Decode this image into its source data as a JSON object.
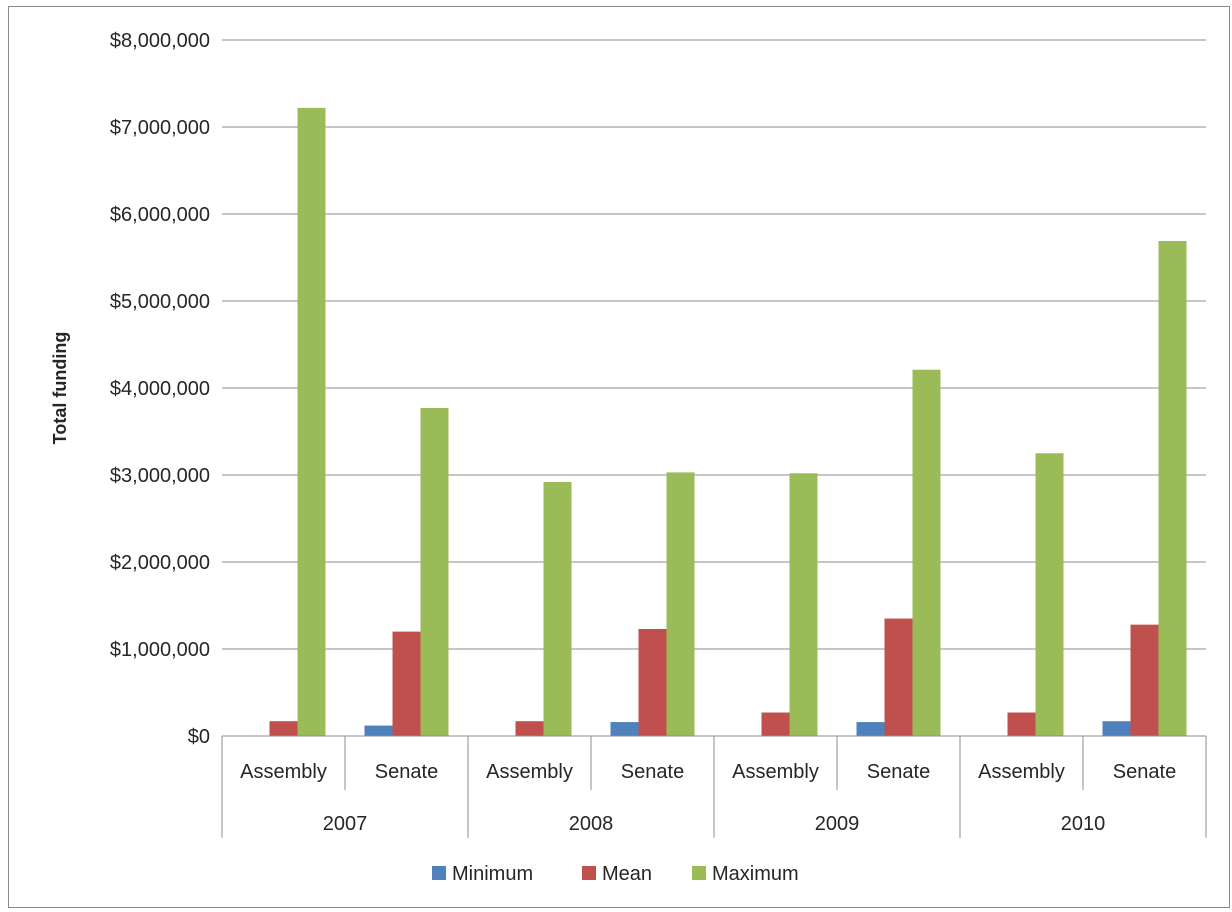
{
  "chart_data": {
    "type": "bar",
    "title": "",
    "xlabel": "",
    "ylabel": "Total funding",
    "ylim": [
      0,
      8000000
    ],
    "yticks": [
      0,
      1000000,
      2000000,
      3000000,
      4000000,
      5000000,
      6000000,
      7000000,
      8000000
    ],
    "ytick_labels": [
      "$0",
      "$1,000,000",
      "$2,000,000",
      "$3,000,000",
      "$4,000,000",
      "$5,000,000",
      "$6,000,000",
      "$7,000,000",
      "$8,000,000"
    ],
    "grid": "horizontal",
    "legend_position": "bottom",
    "categories": [
      {
        "year": "2007",
        "chamber": "Assembly"
      },
      {
        "year": "2007",
        "chamber": "Senate"
      },
      {
        "year": "2008",
        "chamber": "Assembly"
      },
      {
        "year": "2008",
        "chamber": "Senate"
      },
      {
        "year": "2009",
        "chamber": "Assembly"
      },
      {
        "year": "2009",
        "chamber": "Senate"
      },
      {
        "year": "2010",
        "chamber": "Assembly"
      },
      {
        "year": "2010",
        "chamber": "Senate"
      }
    ],
    "years": [
      "2007",
      "2008",
      "2009",
      "2010"
    ],
    "series": [
      {
        "name": "Minimum",
        "color": "#4f81bd",
        "values": [
          0,
          120000,
          0,
          160000,
          0,
          160000,
          0,
          170000
        ]
      },
      {
        "name": "Mean",
        "color": "#c0504d",
        "values": [
          170000,
          1200000,
          170000,
          1230000,
          270000,
          1350000,
          270000,
          1280000
        ]
      },
      {
        "name": "Maximum",
        "color": "#9bbb59",
        "values": [
          7220000,
          3770000,
          2920000,
          3030000,
          3020000,
          4210000,
          3250000,
          5690000
        ]
      }
    ]
  }
}
